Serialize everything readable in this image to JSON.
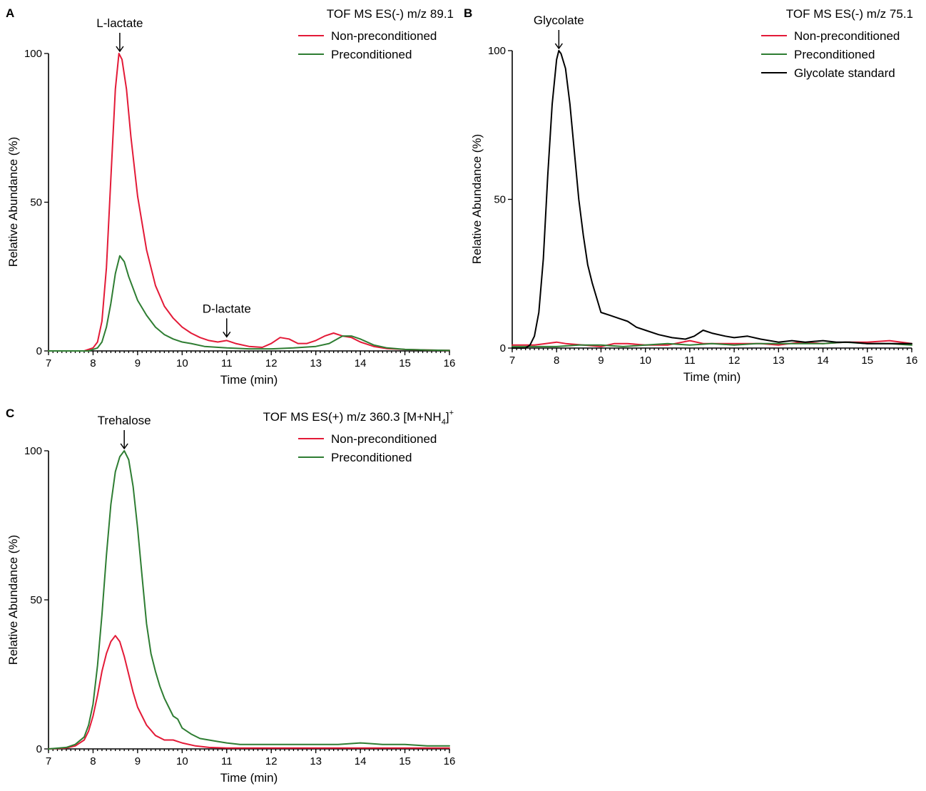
{
  "colors": {
    "non_preconditioned": "#e31a37",
    "preconditioned": "#2e7d32",
    "standard": "#000000"
  },
  "chart_data": [
    {
      "panel_label": "A",
      "type": "line",
      "title": "TOF MS ES(-) m/z 89.1",
      "xlabel": "Time (min)",
      "ylabel": "Relative Abundance (%)",
      "xlim": [
        7,
        16
      ],
      "ylim": [
        0,
        100
      ],
      "xticks": [
        7,
        8,
        9,
        10,
        11,
        12,
        13,
        14,
        15,
        16
      ],
      "yticks": [
        0,
        50,
        100
      ],
      "legend_position": "top-right",
      "annotations": [
        {
          "text": "L-lactate",
          "x": 8.6,
          "y": 100
        },
        {
          "text": "D-lactate",
          "x": 11.0,
          "y": 4
        }
      ],
      "series": [
        {
          "name": "Non-preconditioned",
          "color_key": "non_preconditioned",
          "points": [
            [
              7,
              0
            ],
            [
              7.5,
              0
            ],
            [
              7.8,
              0
            ],
            [
              8.0,
              1
            ],
            [
              8.1,
              3
            ],
            [
              8.2,
              10
            ],
            [
              8.3,
              28
            ],
            [
              8.4,
              58
            ],
            [
              8.5,
              88
            ],
            [
              8.58,
              100
            ],
            [
              8.65,
              98
            ],
            [
              8.75,
              88
            ],
            [
              8.85,
              72
            ],
            [
              9.0,
              52
            ],
            [
              9.2,
              34
            ],
            [
              9.4,
              22
            ],
            [
              9.6,
              15
            ],
            [
              9.8,
              11
            ],
            [
              10.0,
              8
            ],
            [
              10.2,
              6
            ],
            [
              10.4,
              4.5
            ],
            [
              10.6,
              3.5
            ],
            [
              10.8,
              3
            ],
            [
              11.0,
              3.5
            ],
            [
              11.2,
              2.5
            ],
            [
              11.5,
              1.5
            ],
            [
              11.8,
              1.2
            ],
            [
              12.0,
              2.5
            ],
            [
              12.2,
              4.5
            ],
            [
              12.4,
              4
            ],
            [
              12.6,
              2.5
            ],
            [
              12.8,
              2.5
            ],
            [
              13.0,
              3.5
            ],
            [
              13.2,
              5
            ],
            [
              13.4,
              6
            ],
            [
              13.6,
              5
            ],
            [
              13.8,
              4.5
            ],
            [
              14.0,
              3
            ],
            [
              14.3,
              1.5
            ],
            [
              14.6,
              0.8
            ],
            [
              15.0,
              0.5
            ],
            [
              15.5,
              0.3
            ],
            [
              16.0,
              0.2
            ]
          ]
        },
        {
          "name": "Preconditioned",
          "color_key": "preconditioned",
          "points": [
            [
              7,
              0
            ],
            [
              7.5,
              0
            ],
            [
              7.9,
              0
            ],
            [
              8.1,
              1
            ],
            [
              8.2,
              3
            ],
            [
              8.3,
              8
            ],
            [
              8.4,
              16
            ],
            [
              8.5,
              26
            ],
            [
              8.6,
              32
            ],
            [
              8.7,
              30
            ],
            [
              8.8,
              25
            ],
            [
              9.0,
              17
            ],
            [
              9.2,
              12
            ],
            [
              9.4,
              8
            ],
            [
              9.6,
              5.5
            ],
            [
              9.8,
              4
            ],
            [
              10.0,
              3
            ],
            [
              10.2,
              2.5
            ],
            [
              10.5,
              1.5
            ],
            [
              11.0,
              1
            ],
            [
              11.5,
              0.7
            ],
            [
              12.0,
              0.7
            ],
            [
              12.5,
              1
            ],
            [
              13.0,
              1.5
            ],
            [
              13.3,
              2.5
            ],
            [
              13.6,
              5
            ],
            [
              13.8,
              5
            ],
            [
              14.0,
              4
            ],
            [
              14.3,
              2
            ],
            [
              14.6,
              1
            ],
            [
              15.0,
              0.5
            ],
            [
              15.5,
              0.3
            ],
            [
              16.0,
              0.2
            ]
          ]
        }
      ]
    },
    {
      "panel_label": "B",
      "type": "line",
      "title": "TOF MS ES(-) m/z 75.1",
      "xlabel": "Time (min)",
      "ylabel": "Relative Abundance (%)",
      "xlim": [
        7,
        16
      ],
      "ylim": [
        0,
        100
      ],
      "xticks": [
        7,
        8,
        9,
        10,
        11,
        12,
        13,
        14,
        15,
        16
      ],
      "yticks": [
        0,
        50,
        100
      ],
      "legend_position": "top-right",
      "annotations": [
        {
          "text": "Glycolate",
          "x": 8.05,
          "y": 100
        }
      ],
      "series": [
        {
          "name": "Non-preconditioned",
          "color_key": "non_preconditioned",
          "points": [
            [
              7,
              1
            ],
            [
              7.5,
              1
            ],
            [
              8.0,
              2
            ],
            [
              8.2,
              1.5
            ],
            [
              8.6,
              1
            ],
            [
              9.0,
              0.5
            ],
            [
              9.3,
              1.5
            ],
            [
              9.6,
              1.5
            ],
            [
              10.0,
              1
            ],
            [
              10.5,
              1
            ],
            [
              11.0,
              2.5
            ],
            [
              11.3,
              1.5
            ],
            [
              12.0,
              1.5
            ],
            [
              12.6,
              1.5
            ],
            [
              13.0,
              1
            ],
            [
              13.5,
              2
            ],
            [
              14.0,
              1.5
            ],
            [
              14.5,
              2
            ],
            [
              15.0,
              2
            ],
            [
              15.5,
              2.5
            ],
            [
              16.0,
              1.5
            ]
          ]
        },
        {
          "name": "Preconditioned",
          "color_key": "preconditioned",
          "points": [
            [
              7,
              0.5
            ],
            [
              7.5,
              0.5
            ],
            [
              8.0,
              0.5
            ],
            [
              8.5,
              1
            ],
            [
              9.0,
              1
            ],
            [
              9.5,
              0.5
            ],
            [
              10.0,
              1
            ],
            [
              10.5,
              1.5
            ],
            [
              11.0,
              1
            ],
            [
              11.5,
              1.5
            ],
            [
              12.0,
              1
            ],
            [
              12.5,
              1.5
            ],
            [
              13.0,
              1.5
            ],
            [
              13.5,
              1.5
            ],
            [
              14.0,
              1.5
            ],
            [
              14.5,
              2
            ],
            [
              15.0,
              1.5
            ],
            [
              15.5,
              1.5
            ],
            [
              16.0,
              1
            ]
          ]
        },
        {
          "name": "Glycolate standard",
          "color_key": "standard",
          "points": [
            [
              7,
              0
            ],
            [
              7.3,
              0
            ],
            [
              7.4,
              1
            ],
            [
              7.5,
              4
            ],
            [
              7.6,
              12
            ],
            [
              7.7,
              30
            ],
            [
              7.8,
              58
            ],
            [
              7.9,
              82
            ],
            [
              8.0,
              97
            ],
            [
              8.05,
              100
            ],
            [
              8.1,
              99
            ],
            [
              8.2,
              94
            ],
            [
              8.3,
              82
            ],
            [
              8.4,
              66
            ],
            [
              8.5,
              50
            ],
            [
              8.6,
              38
            ],
            [
              8.7,
              28
            ],
            [
              8.8,
              22
            ],
            [
              8.9,
              17
            ],
            [
              9.0,
              12
            ],
            [
              9.2,
              11
            ],
            [
              9.4,
              10
            ],
            [
              9.6,
              9
            ],
            [
              9.8,
              7
            ],
            [
              10.0,
              6
            ],
            [
              10.3,
              4.5
            ],
            [
              10.6,
              3.5
            ],
            [
              10.9,
              3
            ],
            [
              11.1,
              4
            ],
            [
              11.3,
              6
            ],
            [
              11.5,
              5
            ],
            [
              11.8,
              4
            ],
            [
              12.0,
              3.5
            ],
            [
              12.3,
              4
            ],
            [
              12.6,
              3
            ],
            [
              13.0,
              2
            ],
            [
              13.3,
              2.5
            ],
            [
              13.6,
              2
            ],
            [
              14.0,
              2.5
            ],
            [
              14.3,
              2
            ],
            [
              14.6,
              2
            ],
            [
              15.0,
              1.5
            ],
            [
              15.5,
              1.5
            ],
            [
              16.0,
              1.5
            ]
          ]
        }
      ]
    },
    {
      "panel_label": "C",
      "type": "line",
      "title": "TOF MS ES(+) m/z 360.3 [M+NH",
      "title_sub": "4",
      "title_tail": "]",
      "title_sup": "+",
      "xlabel": "Time (min)",
      "ylabel": "Relative Abundance (%)",
      "xlim": [
        7,
        16
      ],
      "ylim": [
        0,
        100
      ],
      "xticks": [
        7,
        8,
        9,
        10,
        11,
        12,
        13,
        14,
        15,
        16
      ],
      "yticks": [
        0,
        50,
        100
      ],
      "legend_position": "top-right",
      "annotations": [
        {
          "text": "Trehalose",
          "x": 8.7,
          "y": 100
        }
      ],
      "series": [
        {
          "name": "Non-preconditioned",
          "color_key": "non_preconditioned",
          "points": [
            [
              7,
              0
            ],
            [
              7.4,
              0.3
            ],
            [
              7.6,
              1
            ],
            [
              7.8,
              3
            ],
            [
              7.9,
              6
            ],
            [
              8.0,
              11
            ],
            [
              8.1,
              18
            ],
            [
              8.2,
              26
            ],
            [
              8.3,
              32
            ],
            [
              8.4,
              36
            ],
            [
              8.5,
              38
            ],
            [
              8.6,
              36
            ],
            [
              8.7,
              31
            ],
            [
              8.8,
              25
            ],
            [
              8.9,
              19
            ],
            [
              9.0,
              14
            ],
            [
              9.2,
              8
            ],
            [
              9.4,
              4.5
            ],
            [
              9.6,
              3
            ],
            [
              9.8,
              3
            ],
            [
              10.0,
              2
            ],
            [
              10.3,
              1
            ],
            [
              10.6,
              0.5
            ],
            [
              11.0,
              0.3
            ],
            [
              12.0,
              0.3
            ],
            [
              13.0,
              0.3
            ],
            [
              14.0,
              0.3
            ],
            [
              15.0,
              0.3
            ],
            [
              16.0,
              0.3
            ]
          ]
        },
        {
          "name": "Preconditioned",
          "color_key": "preconditioned",
          "points": [
            [
              7,
              0
            ],
            [
              7.4,
              0.5
            ],
            [
              7.6,
              1.5
            ],
            [
              7.8,
              4
            ],
            [
              7.9,
              8
            ],
            [
              8.0,
              15
            ],
            [
              8.1,
              28
            ],
            [
              8.2,
              45
            ],
            [
              8.3,
              65
            ],
            [
              8.4,
              82
            ],
            [
              8.5,
              93
            ],
            [
              8.6,
              98
            ],
            [
              8.7,
              100
            ],
            [
              8.8,
              97
            ],
            [
              8.9,
              88
            ],
            [
              9.0,
              74
            ],
            [
              9.1,
              58
            ],
            [
              9.2,
              42
            ],
            [
              9.3,
              32
            ],
            [
              9.4,
              26
            ],
            [
              9.5,
              21
            ],
            [
              9.6,
              17
            ],
            [
              9.7,
              14
            ],
            [
              9.8,
              11
            ],
            [
              9.9,
              10
            ],
            [
              10.0,
              7
            ],
            [
              10.2,
              5
            ],
            [
              10.4,
              3.5
            ],
            [
              10.6,
              3
            ],
            [
              10.8,
              2.5
            ],
            [
              11.0,
              2
            ],
            [
              11.3,
              1.5
            ],
            [
              11.6,
              1.5
            ],
            [
              12.0,
              1.5
            ],
            [
              12.5,
              1.5
            ],
            [
              13.0,
              1.5
            ],
            [
              13.5,
              1.5
            ],
            [
              14.0,
              2
            ],
            [
              14.5,
              1.5
            ],
            [
              15.0,
              1.5
            ],
            [
              15.5,
              1
            ],
            [
              16.0,
              1
            ]
          ]
        }
      ]
    }
  ]
}
